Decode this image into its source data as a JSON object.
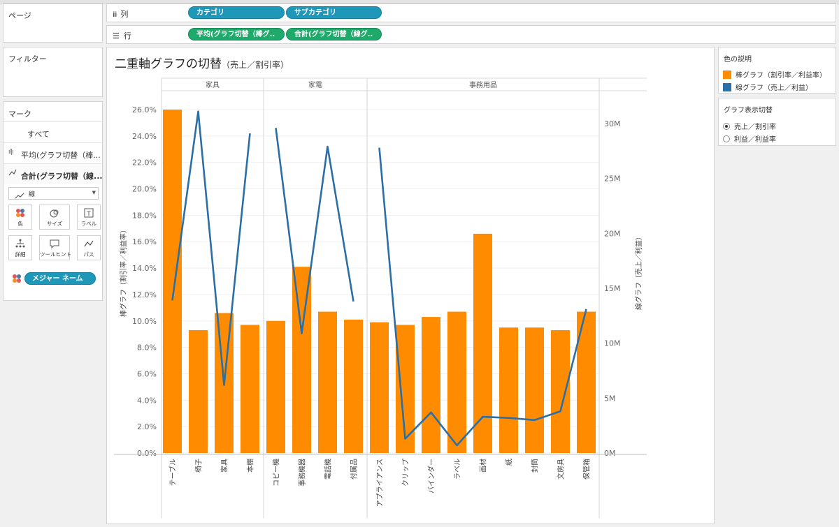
{
  "panes": {
    "pages_title": "ページ",
    "filters_title": "フィルター",
    "marks_title": "マーク"
  },
  "shelves": {
    "columns_label": "列",
    "rows_label": "行",
    "columns_pills": [
      "カテゴリ",
      "サブカテゴリ"
    ],
    "rows_pills": [
      "平均(グラフ切替（棒グ..",
      "合計(グラフ切替（線グ.."
    ]
  },
  "marks": {
    "all_label": "すべて",
    "bar_layer_label": "平均(グラフ切替（棒...",
    "line_layer_label": "合計(グラフ切替（線...",
    "mark_type": "線",
    "buttons": [
      "色",
      "サイズ",
      "ラベル",
      "詳細",
      "ツールヒント",
      "パス"
    ],
    "measure_names_pill": "メジャー ネーム"
  },
  "legend": {
    "title": "色の説明",
    "items": [
      {
        "label": "棒グラフ（割引率／利益率）",
        "color": "#ff8c00"
      },
      {
        "label": "線グラフ（売上／利益）",
        "color": "#2c6ea6"
      }
    ]
  },
  "switcher": {
    "title": "グラフ表示切替",
    "options": [
      {
        "label": "売上／割引率",
        "selected": true
      },
      {
        "label": "利益／利益率",
        "selected": false
      }
    ]
  },
  "chart_data": {
    "type": "bar",
    "title": "二重軸グラフの切替",
    "subtitle": "（売上／割引率）",
    "groups": [
      {
        "name": "家具",
        "categories": [
          "テーブル",
          "椅子",
          "家具",
          "本棚"
        ]
      },
      {
        "name": "家電",
        "categories": [
          "コピー機",
          "事務機器",
          "電話機",
          "付属品"
        ]
      },
      {
        "name": "事務用品",
        "categories": [
          "アプライアンス",
          "クリップ",
          "バインダー",
          "ラベル",
          "画材",
          "紙",
          "封筒",
          "文房具",
          "保管箱"
        ]
      }
    ],
    "series": [
      {
        "name": "棒グラフ（割引率／利益率）",
        "type": "bar",
        "axis": "left",
        "color": "#ff8c00",
        "values": [
          0.26,
          0.093,
          0.106,
          0.097,
          0.1,
          0.141,
          0.107,
          0.101,
          0.099,
          0.097,
          0.103,
          0.107,
          0.166,
          0.095,
          0.095,
          0.093,
          0.107
        ]
      },
      {
        "name": "線グラフ（売上／利益）",
        "type": "line",
        "axis": "right",
        "color": "#2c6ea6",
        "values": [
          13.9,
          31.1,
          6.2,
          29.1,
          29.6,
          10.9,
          27.9,
          13.8,
          27.8,
          1.3,
          3.7,
          0.7,
          3.3,
          3.2,
          3.0,
          3.8,
          13.1
        ]
      }
    ],
    "ylabel": "棒グラフ（割引率／利益率）",
    "ylabel2": "線グラフ（売上／利益）",
    "ylim": [
      0,
      0.27
    ],
    "y2lim": [
      0,
      33
    ],
    "yticks": [
      "0.0%",
      "2.0%",
      "4.0%",
      "6.0%",
      "8.0%",
      "10.0%",
      "12.0%",
      "14.0%",
      "16.0%",
      "18.0%",
      "20.0%",
      "22.0%",
      "24.0%",
      "26.0%"
    ],
    "y2ticks": [
      "0M",
      "5M",
      "10M",
      "15M",
      "20M",
      "25M",
      "30M"
    ]
  }
}
